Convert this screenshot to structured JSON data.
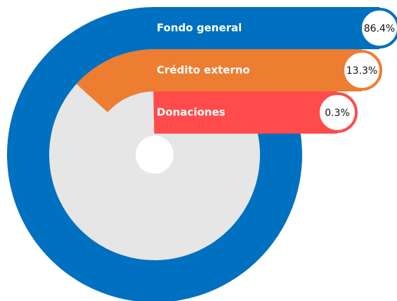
{
  "chart_data": {
    "type": "radial-bar",
    "categories": [
      "Fondo general",
      "Crédito externo",
      "Donaciones"
    ],
    "values": [
      86.4,
      13.3,
      0.3
    ],
    "value_labels": [
      "86.4%",
      "13.3%",
      "0.3%"
    ],
    "colors": [
      "#0070c0",
      "#ed7d31",
      "#ff4b4b"
    ],
    "track_color": "#e6e6e6"
  }
}
